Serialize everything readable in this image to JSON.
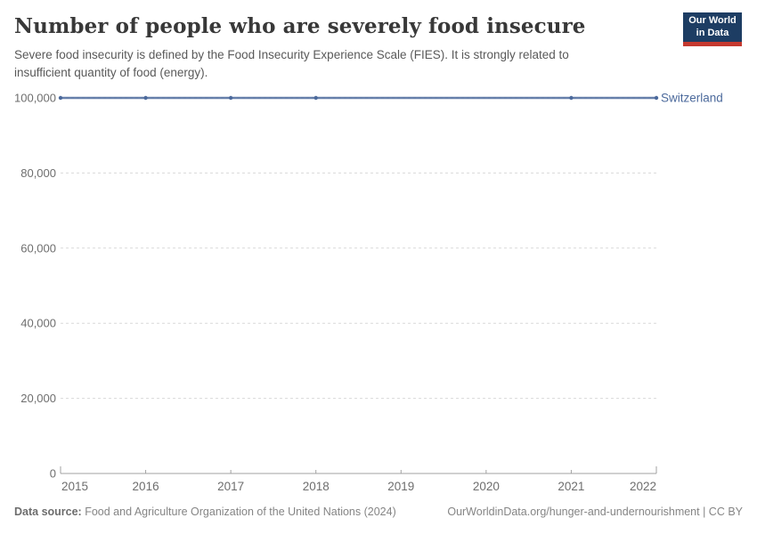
{
  "header": {
    "title": "Number of people who are severely food insecure",
    "subtitle": "Severe food insecurity is defined by the Food Insecurity Experience Scale (FIES). It is strongly related to insufficient quantity of food (energy).",
    "logo": {
      "line1": "Our World",
      "line2": "in Data",
      "bg_color": "#1d3d63",
      "bar_color": "#c5392f"
    }
  },
  "chart_data": {
    "type": "line",
    "title": "Number of people who are severely food insecure",
    "xlabel": "",
    "ylabel": "",
    "xlim": [
      2015,
      2022
    ],
    "ylim": [
      0,
      100000
    ],
    "x_ticks": [
      2015,
      2016,
      2017,
      2018,
      2019,
      2020,
      2021,
      2022
    ],
    "y_ticks": [
      0,
      20000,
      40000,
      60000,
      80000,
      100000
    ],
    "y_tick_labels": [
      "0",
      "20,000",
      "40,000",
      "60,000",
      "80,000",
      "100,000"
    ],
    "grid": "horizontal-dashed",
    "legend_position": "line-end-label",
    "series": [
      {
        "name": "Switzerland",
        "color": "#4c6a9c",
        "points": [
          {
            "year": 2015,
            "value": 100000
          },
          {
            "year": 2016,
            "value": 100000
          },
          {
            "year": 2017,
            "value": 100000
          },
          {
            "year": 2018,
            "value": 100000
          },
          {
            "year": 2021,
            "value": 100000
          },
          {
            "year": 2022,
            "value": 100000
          }
        ]
      }
    ]
  },
  "footer": {
    "source_label": "Data source:",
    "source_text": "Food and Agriculture Organization of the United Nations (2024)",
    "citation": "OurWorldinData.org/hunger-and-undernourishment | CC BY"
  },
  "colors": {
    "accent_line": "#4c6a9c",
    "grid": "#d9d9d9",
    "axis": "#a1a1a1",
    "tick_text": "#6e6e6e"
  }
}
